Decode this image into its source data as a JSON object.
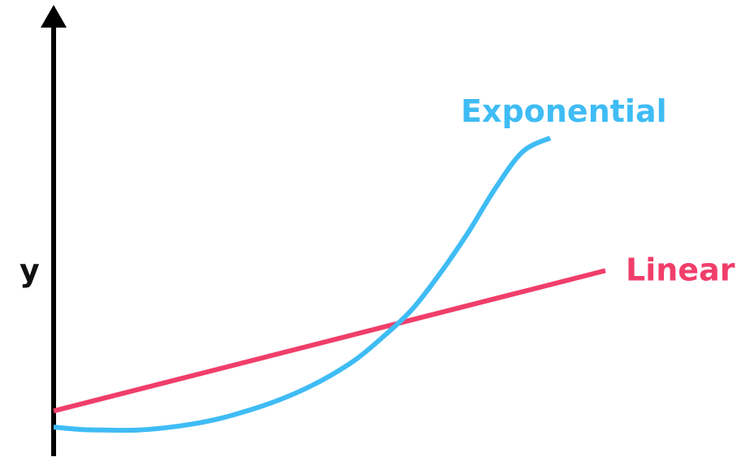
{
  "chart_data": {
    "type": "line",
    "title": "",
    "xlabel": "",
    "ylabel": "y",
    "xlim": [
      0,
      10
    ],
    "ylim": [
      0,
      10
    ],
    "grid": false,
    "series": [
      {
        "name": "Linear",
        "color": "#f03e6a",
        "x": [
          0,
          10
        ],
        "y": [
          1.15,
          5.7
        ]
      },
      {
        "name": "Exponential",
        "color": "#3fbcf5",
        "x": [
          0,
          0.5,
          1,
          1.5,
          2,
          2.5,
          3,
          3.5,
          4,
          4.5,
          5,
          5.5,
          6,
          6.5,
          7,
          7.5,
          8,
          8.5,
          9
        ],
        "y": [
          0.63,
          0.55,
          0.53,
          0.53,
          0.6,
          0.72,
          0.9,
          1.15,
          1.45,
          1.82,
          2.28,
          2.85,
          3.6,
          4.45,
          5.6,
          6.9,
          8.35,
          9.55,
          10.0
        ]
      }
    ]
  }
}
